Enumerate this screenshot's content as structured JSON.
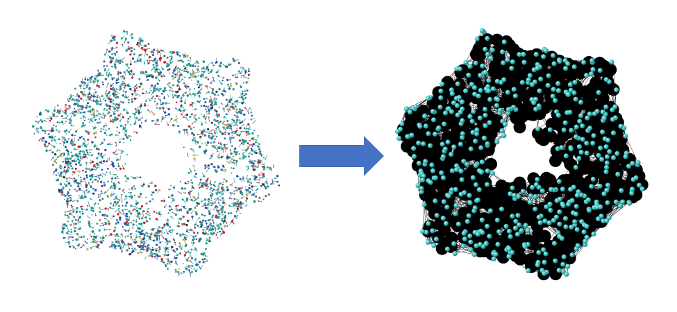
{
  "figure": {
    "left_panel": {
      "kind": "atomic-structure",
      "atom_colors": [
        "#1f8a8a",
        "#2aa6a6",
        "#2b4ea8",
        "#c8262a",
        "#9a9a9a",
        "#d9b43a",
        "#3a3a3a"
      ]
    },
    "arrow": {
      "color": "#4472c4",
      "direction": "right"
    },
    "right_panel": {
      "kind": "coarse-grained-network",
      "node_color": "#3ec1c1",
      "node_highlight": "#9ee9e9",
      "edge_color": "#000000"
    }
  }
}
